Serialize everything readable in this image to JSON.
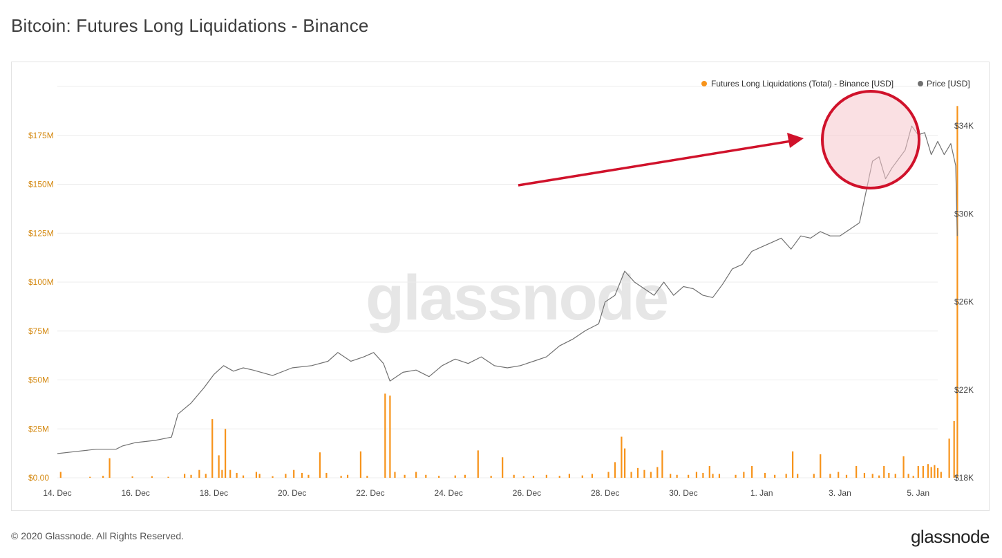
{
  "page": {
    "title": "Bitcoin: Futures Long Liquidations - Binance",
    "footer": "© 2020 Glassnode. All Rights Reserved.",
    "brand": "glassnode",
    "watermark": "glassnode"
  },
  "colors": {
    "liquidations": "#f7931a",
    "price": "#707070",
    "left_axis": "#d4880f",
    "grid": "#ececec",
    "annotation": "#d0122b",
    "circle_fill": "#f6c6cc"
  },
  "chart_data": {
    "type": "bar+line",
    "title": "Bitcoin: Futures Long Liquidations - Binance",
    "legend_placement": "top-right",
    "grid": true,
    "x": {
      "type": "date",
      "range": [
        "2020-12-14",
        "2021-01-05T12:00"
      ],
      "tick_dates": [
        "2020-12-14",
        "2020-12-16",
        "2020-12-18",
        "2020-12-20",
        "2020-12-22",
        "2020-12-24",
        "2020-12-26",
        "2020-12-28",
        "2020-12-30",
        "2021-01-01",
        "2021-01-03",
        "2021-01-05"
      ],
      "tick_labels": [
        "14. Dec",
        "16. Dec",
        "18. Dec",
        "20. Dec",
        "22. Dec",
        "24. Dec",
        "26. Dec",
        "28. Dec",
        "30. Dec",
        "1. Jan",
        "3. Jan",
        "5. Jan"
      ]
    },
    "y_left": {
      "ylim": [
        0,
        200000000
      ],
      "tick_values": [
        0,
        25000000,
        50000000,
        75000000,
        100000000,
        125000000,
        150000000,
        175000000
      ],
      "tick_labels": [
        "$0.00",
        "$25M",
        "$50M",
        "$75M",
        "$100M",
        "$125M",
        "$150M",
        "$175M"
      ]
    },
    "y_right": {
      "ylim": [
        18000,
        35800
      ],
      "tick_values": [
        18000,
        22000,
        26000,
        30000,
        34000
      ],
      "tick_labels": [
        "$18K",
        "$22K",
        "$26K",
        "$30K",
        "$34K"
      ]
    },
    "series": [
      {
        "name": "Futures Long Liquidations (Total) - Binance [USD]",
        "axis": "left",
        "kind": "bar",
        "points": [
          [
            "2020-12-14T02:00",
            3000000
          ],
          [
            "2020-12-14T20:00",
            500000
          ],
          [
            "2020-12-15T04:00",
            1000000
          ],
          [
            "2020-12-15T08:00",
            10000000
          ],
          [
            "2020-12-15T22:00",
            700000
          ],
          [
            "2020-12-16T10:00",
            800000
          ],
          [
            "2020-12-16T20:00",
            500000
          ],
          [
            "2020-12-17T06:00",
            2000000
          ],
          [
            "2020-12-17T10:00",
            1500000
          ],
          [
            "2020-12-17T15:00",
            4000000
          ],
          [
            "2020-12-17T19:00",
            2000000
          ],
          [
            "2020-12-17T23:00",
            30000000
          ],
          [
            "2020-12-18T03:00",
            11500000
          ],
          [
            "2020-12-18T05:00",
            4000000
          ],
          [
            "2020-12-18T07:00",
            25000000
          ],
          [
            "2020-12-18T10:00",
            4000000
          ],
          [
            "2020-12-18T14:00",
            2500000
          ],
          [
            "2020-12-18T18:00",
            1200000
          ],
          [
            "2020-12-19T02:00",
            3000000
          ],
          [
            "2020-12-19T04:00",
            2000000
          ],
          [
            "2020-12-19T12:00",
            800000
          ],
          [
            "2020-12-19T20:00",
            2000000
          ],
          [
            "2020-12-20T01:00",
            4000000
          ],
          [
            "2020-12-20T06:00",
            2500000
          ],
          [
            "2020-12-20T10:00",
            1500000
          ],
          [
            "2020-12-20T17:00",
            13000000
          ],
          [
            "2020-12-20T21:00",
            2500000
          ],
          [
            "2020-12-21T06:00",
            1000000
          ],
          [
            "2020-12-21T10:00",
            1500000
          ],
          [
            "2020-12-21T18:00",
            13500000
          ],
          [
            "2020-12-21T22:00",
            1000000
          ],
          [
            "2020-12-22T09:00",
            43000000
          ],
          [
            "2020-12-22T12:00",
            42000000
          ],
          [
            "2020-12-22T15:00",
            3000000
          ],
          [
            "2020-12-22T21:00",
            1500000
          ],
          [
            "2020-12-23T04:00",
            3000000
          ],
          [
            "2020-12-23T10:00",
            1500000
          ],
          [
            "2020-12-23T18:00",
            1000000
          ],
          [
            "2020-12-24T04:00",
            1200000
          ],
          [
            "2020-12-24T10:00",
            1500000
          ],
          [
            "2020-12-24T18:00",
            14000000
          ],
          [
            "2020-12-25T02:00",
            1000000
          ],
          [
            "2020-12-25T09:00",
            10500000
          ],
          [
            "2020-12-25T16:00",
            1500000
          ],
          [
            "2020-12-25T22:00",
            800000
          ],
          [
            "2020-12-26T04:00",
            1000000
          ],
          [
            "2020-12-26T12:00",
            1500000
          ],
          [
            "2020-12-26T20:00",
            1000000
          ],
          [
            "2020-12-27T02:00",
            2000000
          ],
          [
            "2020-12-27T10:00",
            1200000
          ],
          [
            "2020-12-27T16:00",
            2000000
          ],
          [
            "2020-12-28T02:00",
            3000000
          ],
          [
            "2020-12-28T06:00",
            8000000
          ],
          [
            "2020-12-28T10:00",
            21000000
          ],
          [
            "2020-12-28T12:00",
            15000000
          ],
          [
            "2020-12-28T16:00",
            3000000
          ],
          [
            "2020-12-28T20:00",
            5000000
          ],
          [
            "2020-12-29T00:00",
            4000000
          ],
          [
            "2020-12-29T04:00",
            3000000
          ],
          [
            "2020-12-29T08:00",
            5500000
          ],
          [
            "2020-12-29T11:00",
            14000000
          ],
          [
            "2020-12-29T16:00",
            2000000
          ],
          [
            "2020-12-29T20:00",
            1500000
          ],
          [
            "2020-12-30T03:00",
            1500000
          ],
          [
            "2020-12-30T08:00",
            3000000
          ],
          [
            "2020-12-30T12:00",
            2500000
          ],
          [
            "2020-12-30T16:00",
            6000000
          ],
          [
            "2020-12-30T18:00",
            2000000
          ],
          [
            "2020-12-30T22:00",
            2000000
          ],
          [
            "2020-12-31T08:00",
            1500000
          ],
          [
            "2020-12-31T13:00",
            3000000
          ],
          [
            "2020-12-31T18:00",
            6000000
          ],
          [
            "2021-01-01T02:00",
            2500000
          ],
          [
            "2021-01-01T08:00",
            1500000
          ],
          [
            "2021-01-01T15:00",
            2000000
          ],
          [
            "2021-01-01T19:00",
            13500000
          ],
          [
            "2021-01-01T22:00",
            2000000
          ],
          [
            "2021-01-02T08:00",
            2000000
          ],
          [
            "2021-01-02T12:00",
            12000000
          ],
          [
            "2021-01-02T18:00",
            2000000
          ],
          [
            "2021-01-02T23:00",
            3000000
          ],
          [
            "2021-01-03T04:00",
            1500000
          ],
          [
            "2021-01-03T10:00",
            6000000
          ],
          [
            "2021-01-03T15:00",
            2500000
          ],
          [
            "2021-01-03T20:00",
            2000000
          ],
          [
            "2021-01-04T00:00",
            1200000
          ],
          [
            "2021-01-04T03:00",
            6000000
          ],
          [
            "2021-01-04T06:00",
            2500000
          ],
          [
            "2021-01-04T10:00",
            2000000
          ],
          [
            "2021-01-04T15:00",
            11000000
          ],
          [
            "2021-01-04T18:00",
            2000000
          ],
          [
            "2021-01-04T21:00",
            1000000
          ],
          [
            "2021-01-05T00:00",
            6000000
          ],
          [
            "2021-01-05T03:00",
            6000000
          ],
          [
            "2021-01-05T06:00",
            7000000
          ],
          [
            "2021-01-05T08:00",
            5500000
          ],
          [
            "2021-01-05T10:00",
            6500000
          ],
          [
            "2021-01-05T12:00",
            5000000
          ],
          [
            "2021-01-05T14:00",
            3000000
          ],
          [
            "2021-01-05T19:00",
            20000000
          ],
          [
            "2021-01-05T22:00",
            29000000
          ],
          [
            "2021-01-06T00:00",
            190000000
          ]
        ]
      },
      {
        "name": "Price [USD]",
        "axis": "right",
        "kind": "line",
        "points": [
          [
            "2020-12-14T00:00",
            19100
          ],
          [
            "2020-12-14T12:00",
            19200
          ],
          [
            "2020-12-15T00:00",
            19300
          ],
          [
            "2020-12-15T12:00",
            19300
          ],
          [
            "2020-12-15T16:00",
            19450
          ],
          [
            "2020-12-16T00:00",
            19600
          ],
          [
            "2020-12-16T12:00",
            19700
          ],
          [
            "2020-12-16T22:00",
            19850
          ],
          [
            "2020-12-17T02:00",
            20900
          ],
          [
            "2020-12-17T10:00",
            21400
          ],
          [
            "2020-12-17T18:00",
            22100
          ],
          [
            "2020-12-18T00:00",
            22700
          ],
          [
            "2020-12-18T06:00",
            23100
          ],
          [
            "2020-12-18T12:00",
            22850
          ],
          [
            "2020-12-18T18:00",
            23000
          ],
          [
            "2020-12-19T00:00",
            22900
          ],
          [
            "2020-12-19T12:00",
            22650
          ],
          [
            "2020-12-20T00:00",
            23000
          ],
          [
            "2020-12-20T12:00",
            23100
          ],
          [
            "2020-12-20T22:00",
            23300
          ],
          [
            "2020-12-21T04:00",
            23700
          ],
          [
            "2020-12-21T12:00",
            23300
          ],
          [
            "2020-12-21T20:00",
            23500
          ],
          [
            "2020-12-22T02:00",
            23700
          ],
          [
            "2020-12-22T08:00",
            23200
          ],
          [
            "2020-12-22T12:00",
            22400
          ],
          [
            "2020-12-22T20:00",
            22800
          ],
          [
            "2020-12-23T04:00",
            22900
          ],
          [
            "2020-12-23T12:00",
            22600
          ],
          [
            "2020-12-23T20:00",
            23100
          ],
          [
            "2020-12-24T04:00",
            23400
          ],
          [
            "2020-12-24T12:00",
            23200
          ],
          [
            "2020-12-24T20:00",
            23500
          ],
          [
            "2020-12-25T04:00",
            23100
          ],
          [
            "2020-12-25T12:00",
            23000
          ],
          [
            "2020-12-25T20:00",
            23100
          ],
          [
            "2020-12-26T04:00",
            23300
          ],
          [
            "2020-12-26T12:00",
            23500
          ],
          [
            "2020-12-26T20:00",
            24000
          ],
          [
            "2020-12-27T04:00",
            24300
          ],
          [
            "2020-12-27T12:00",
            24700
          ],
          [
            "2020-12-27T20:00",
            25000
          ],
          [
            "2020-12-28T00:00",
            26000
          ],
          [
            "2020-12-28T06:00",
            26300
          ],
          [
            "2020-12-28T12:00",
            27400
          ],
          [
            "2020-12-28T18:00",
            26900
          ],
          [
            "2020-12-29T00:00",
            26600
          ],
          [
            "2020-12-29T06:00",
            26300
          ],
          [
            "2020-12-29T12:00",
            26900
          ],
          [
            "2020-12-29T18:00",
            26300
          ],
          [
            "2020-12-30T00:00",
            26700
          ],
          [
            "2020-12-30T06:00",
            26600
          ],
          [
            "2020-12-30T12:00",
            26300
          ],
          [
            "2020-12-30T18:00",
            26200
          ],
          [
            "2020-12-31T00:00",
            26800
          ],
          [
            "2020-12-31T06:00",
            27500
          ],
          [
            "2020-12-31T12:00",
            27700
          ],
          [
            "2020-12-31T18:00",
            28300
          ],
          [
            "2021-01-01T00:00",
            28500
          ],
          [
            "2021-01-01T06:00",
            28700
          ],
          [
            "2021-01-01T12:00",
            28900
          ],
          [
            "2021-01-01T18:00",
            28400
          ],
          [
            "2021-01-02T00:00",
            29000
          ],
          [
            "2021-01-02T06:00",
            28900
          ],
          [
            "2021-01-02T12:00",
            29200
          ],
          [
            "2021-01-02T18:00",
            29000
          ],
          [
            "2021-01-03T00:00",
            29000
          ],
          [
            "2021-01-03T06:00",
            29300
          ],
          [
            "2021-01-03T12:00",
            29600
          ],
          [
            "2021-01-03T16:00",
            31000
          ],
          [
            "2021-01-03T20:00",
            32400
          ],
          [
            "2021-01-04T00:00",
            32600
          ],
          [
            "2021-01-04T04:00",
            31600
          ],
          [
            "2021-01-04T08:00",
            32100
          ],
          [
            "2021-01-04T12:00",
            32500
          ],
          [
            "2021-01-04T16:00",
            32900
          ],
          [
            "2021-01-04T20:00",
            34000
          ],
          [
            "2021-01-05T00:00",
            33600
          ],
          [
            "2021-01-05T04:00",
            33700
          ],
          [
            "2021-01-05T08:00",
            32700
          ],
          [
            "2021-01-05T12:00",
            33300
          ],
          [
            "2021-01-05T16:00",
            32700
          ],
          [
            "2021-01-05T20:00",
            33200
          ],
          [
            "2021-01-05T23:00",
            32200
          ],
          [
            "2021-01-06T00:00",
            29000
          ]
        ]
      }
    ]
  }
}
